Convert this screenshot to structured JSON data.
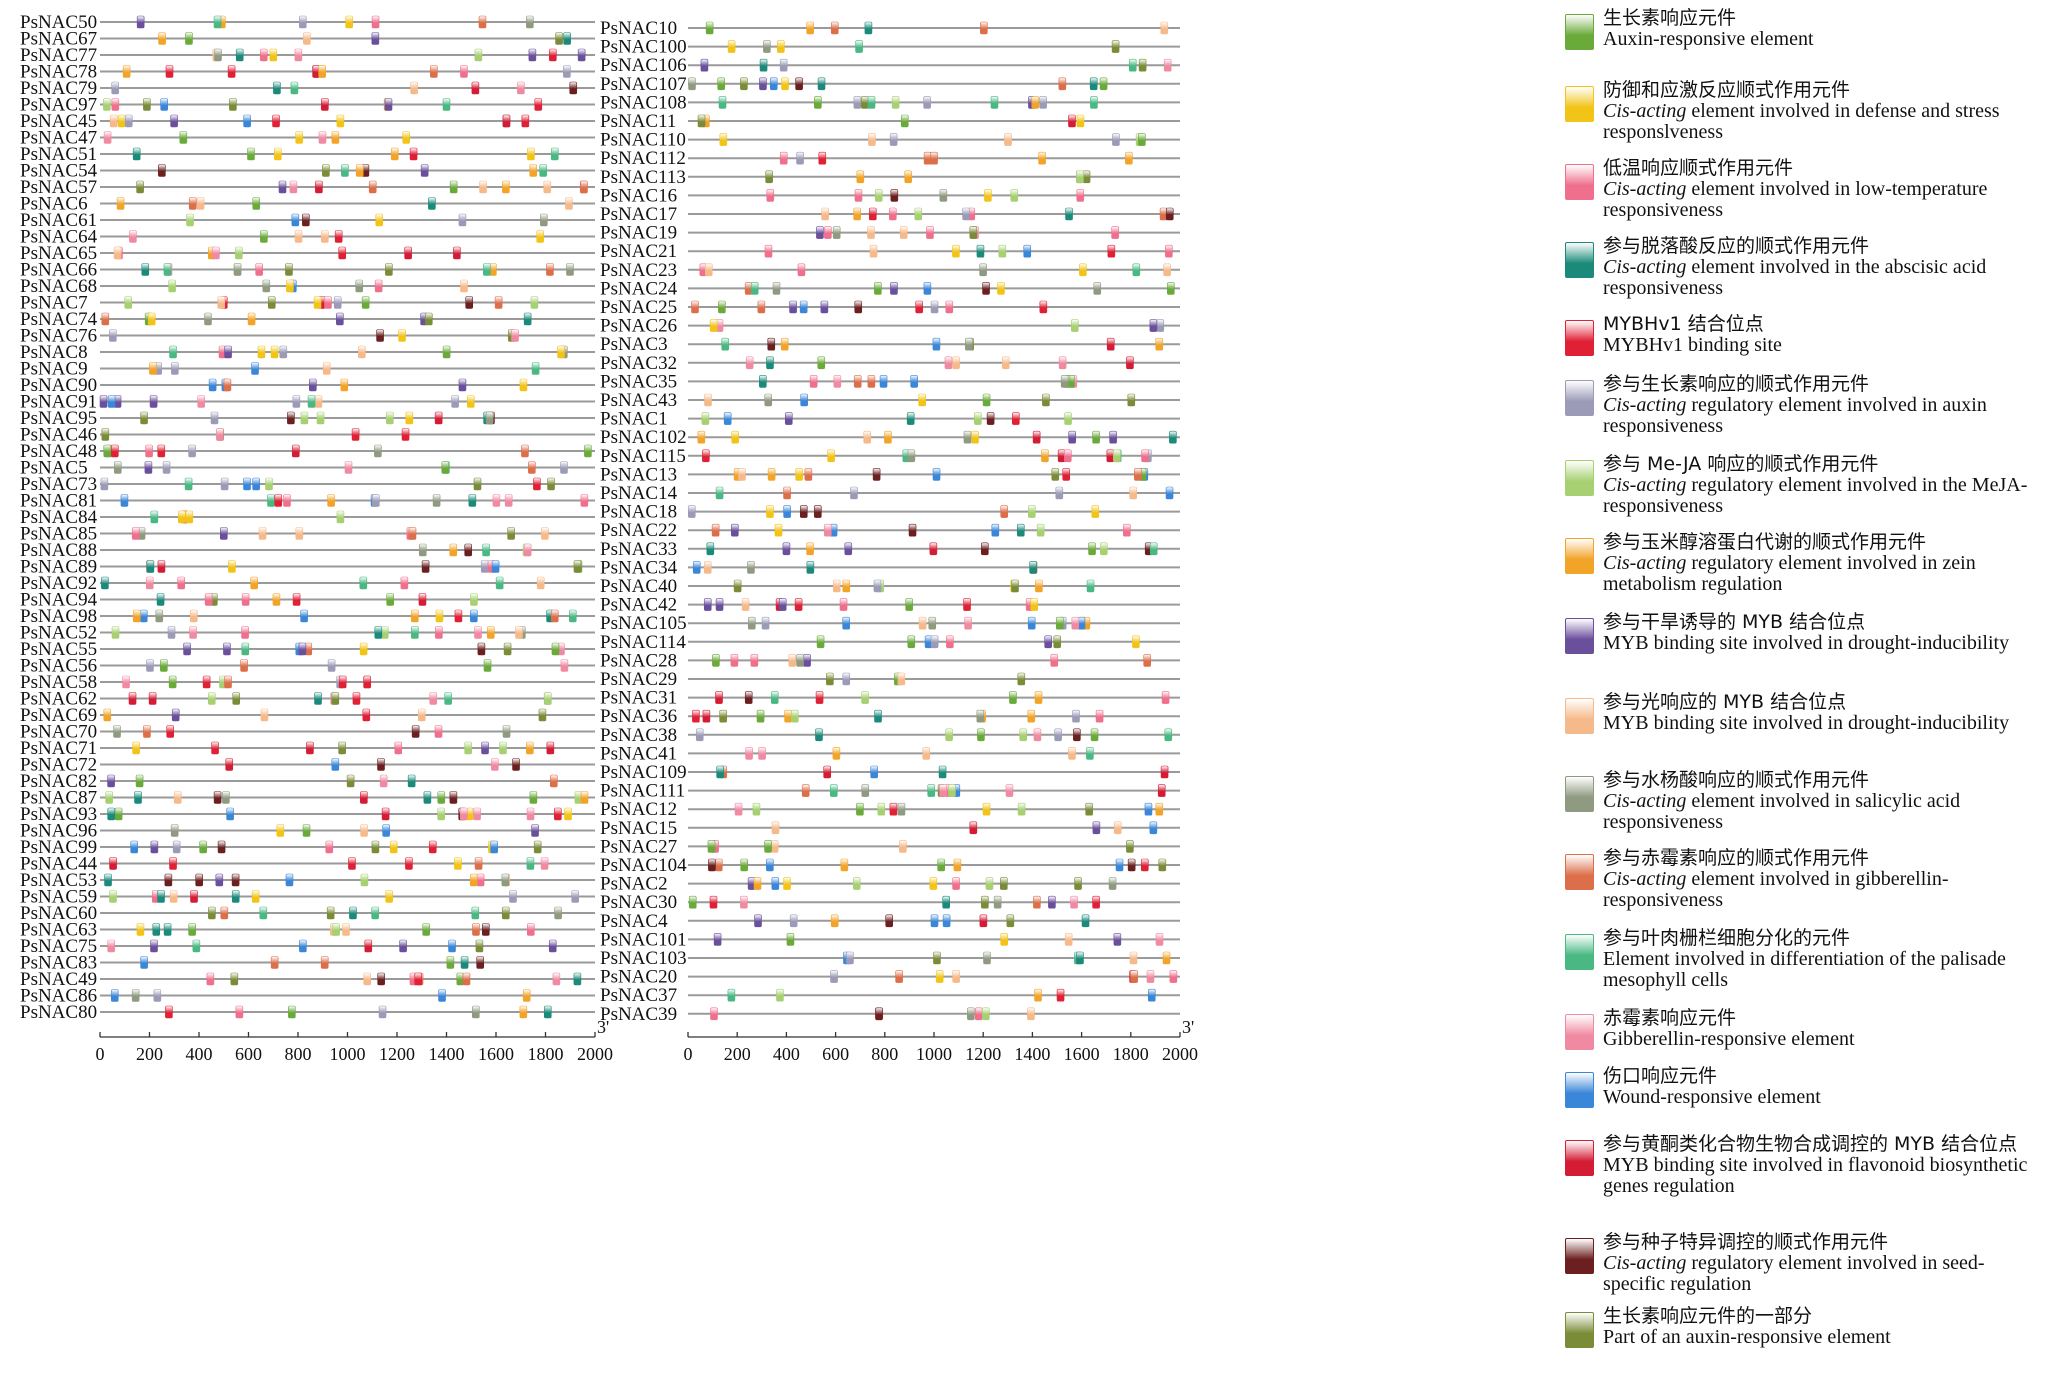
{
  "chart_data": {
    "type": "diagram",
    "xlim": [
      0,
      2000
    ],
    "ticks": [
      "0",
      "200",
      "400",
      "600",
      "800",
      "1000",
      "1200",
      "1400",
      "1600",
      "1800",
      "2000"
    ],
    "end_label": "3'",
    "panels": [
      {
        "genes": [
          "PsNAC50",
          "PsNAC67",
          "PsNAC77",
          "PsNAC78",
          "PsNAC79",
          "PsNAC97",
          "PsNAC45",
          "PsNAC47",
          "PsNAC51",
          "PsNAC54",
          "PsNAC57",
          "PsNAC6",
          "PsNAC61",
          "PsNAC64",
          "PsNAC65",
          "PsNAC66",
          "PsNAC68",
          "PsNAC7",
          "PsNAC74",
          "PsNAC76",
          "PsNAC8",
          "PsNAC9",
          "PsNAC90",
          "PsNAC91",
          "PsNAC95",
          "PsNAC46",
          "PsNAC48",
          "PsNAC5",
          "PsNAC73",
          "PsNAC81",
          "PsNAC84",
          "PsNAC85",
          "PsNAC88",
          "PsNAC89",
          "PsNAC92",
          "PsNAC94",
          "PsNAC98",
          "PsNAC52",
          "PsNAC55",
          "PsNAC56",
          "PsNAC58",
          "PsNAC62",
          "PsNAC69",
          "PsNAC70",
          "PsNAC71",
          "PsNAC72",
          "PsNAC82",
          "PsNAC87",
          "PsNAC93",
          "PsNAC96",
          "PsNAC99",
          "PsNAC44",
          "PsNAC53",
          "PsNAC59",
          "PsNAC60",
          "PsNAC63",
          "PsNAC75",
          "PsNAC83",
          "PsNAC49",
          "PsNAC86",
          "PsNAC80"
        ]
      },
      {
        "genes": [
          "PsNAC10",
          "PsNAC100",
          "PsNAC106",
          "PsNAC107",
          "PsNAC108",
          "PsNAC11",
          "PsNAC110",
          "PsNAC112",
          "PsNAC113",
          "PsNAC16",
          "PsNAC17",
          "PsNAC19",
          "PsNAC21",
          "PsNAC23",
          "PsNAC24",
          "PsNAC25",
          "PsNAC26",
          "PsNAC3",
          "PsNAC32",
          "PsNAC35",
          "PsNAC43",
          "PsNAC1",
          "PsNAC102",
          "PsNAC115",
          "PsNAC13",
          "PsNAC14",
          "PsNAC18",
          "PsNAC22",
          "PsNAC33",
          "PsNAC34",
          "PsNAC40",
          "PsNAC42",
          "PsNAC105",
          "PsNAC114",
          "PsNAC28",
          "PsNAC29",
          "PsNAC31",
          "PsNAC36",
          "PsNAC38",
          "PsNAC41",
          "PsNAC109",
          "PsNAC111",
          "PsNAC12",
          "PsNAC15",
          "PsNAC27",
          "PsNAC104",
          "PsNAC2",
          "PsNAC30",
          "PsNAC4",
          "PsNAC101",
          "PsNAC103",
          "PsNAC20",
          "PsNAC37",
          "PsNAC39"
        ]
      }
    ],
    "legend": [
      {
        "zh": "生长素响应元件",
        "en": "Auxin-responsive element",
        "color": "#6aaa3a"
      },
      {
        "zh": "防御和应激反应顺式作用元件",
        "en": "element involved in defense and stress responslveness",
        "en_italic": "Cis-acting",
        "color": "#f2c418"
      },
      {
        "zh": "低温响应顺式作用元件",
        "en": "element involved in low-temperature responsiveness",
        "en_italic": "Cis-acting",
        "color": "#ef6f8c"
      },
      {
        "zh": "参与脱落酸反应的顺式作用元件",
        "en": "element involved in the abscisic acid responsiveness",
        "en_italic": "Cis-acting",
        "color": "#1b8a7a"
      },
      {
        "zh": "MYBHv1 结合位点",
        "en": "MYBHv1 binding site",
        "color": "#e02035"
      },
      {
        "zh": "参与生长素响应的顺式作用元件",
        "en": "regulatory element involved in auxin responsiveness",
        "en_italic": "Cis-acting",
        "color": "#9b9bb8"
      },
      {
        "zh": "参与 Me-JA 响应的顺式作用元件",
        "en": "regulatory element involved in the MeJA-responsiveness",
        "en_italic": "Cis-acting",
        "color": "#a6d071"
      },
      {
        "zh": "参与玉米醇溶蛋白代谢的顺式作用元件",
        "en": "regulatory element involved in zein metabolism regulation",
        "en_italic": "Cis-acting",
        "color": "#f2a428"
      },
      {
        "zh": "参与干旱诱导的 MYB 结合位点",
        "en": "MYB binding site involved in drought-inducibility",
        "color": "#6a4f9c"
      },
      {
        "zh": "参与光响应的 MYB 结合位点",
        "en": "MYB binding site involved in drought-inducibility",
        "color": "#f6b98a"
      },
      {
        "zh": "参与水杨酸响应的顺式作用元件",
        "en": "element involved in salicylic acid responsiveness",
        "en_italic": "Cis-acting",
        "color": "#8f9a80"
      },
      {
        "zh": "参与赤霉素响应的顺式作用元件",
        "en": "element involved in gibberellin-responsiveness",
        "en_italic": "Cis-acting",
        "color": "#dc6f4a"
      },
      {
        "zh": "参与叶肉栅栏细胞分化的元件",
        "en": "Element involved in differentiation of the palisade mesophyll cells",
        "color": "#49b883"
      },
      {
        "zh": "赤霉素响应元件",
        "en": "Gibberellin-responsive element",
        "color": "#f08aa2"
      },
      {
        "zh": "伤口响应元件",
        "en": "Wound-responsive element",
        "color": "#3a86d8"
      },
      {
        "zh": "参与黄酮类化合物生物合成调控的 MYB 结合位点",
        "en": "MYB binding site involved in flavonoid biosynthetic genes regulation",
        "color": "#d41c35"
      },
      {
        "zh": "参与种子特异调控的顺式作用元件",
        "en": "regulatory element involved in seed-specific regulation",
        "en_italic": "Cis-acting",
        "color": "#6b1f1f"
      },
      {
        "zh": "生长素响应元件的一部分",
        "en": "Part of an auxin-responsive element",
        "color": "#7a8c38"
      }
    ]
  }
}
